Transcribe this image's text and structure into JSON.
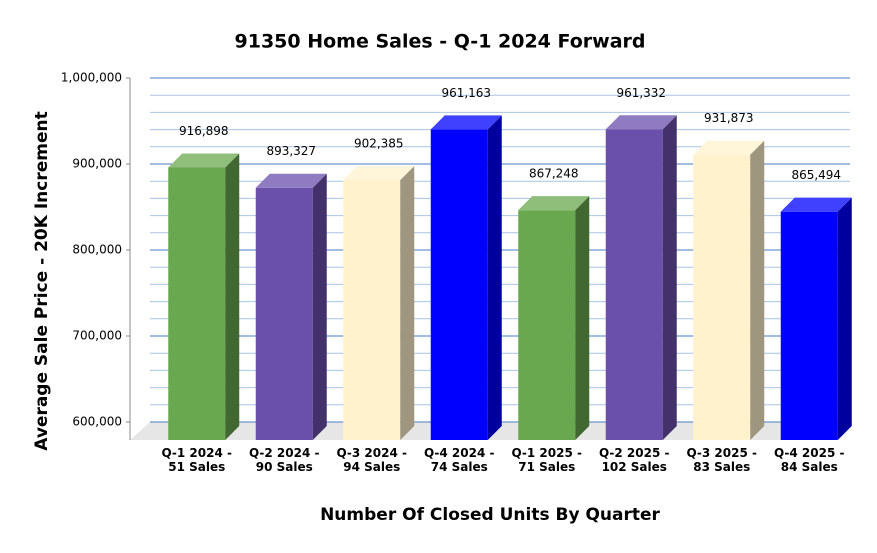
{
  "chart_data": {
    "type": "bar3d",
    "title": "91350 Home Sales - Q-1 2024 Forward",
    "x_label": "Number Of Closed Units By Quarter",
    "y_label": "Average Sale Price - 20K Increment",
    "categories": [
      "Q-1 2024 -\n51 Sales",
      "Q-2 2024 -\n90 Sales",
      "Q-3 2024 -\n94 Sales",
      "Q-4 2024 -\n74 Sales",
      "Q-1 2025 -\n71 Sales",
      "Q-2 2025 -\n102 Sales",
      "Q-3 2025 -\n83 Sales",
      "Q-4 2025 -\n84 Sales"
    ],
    "values": [
      916898,
      893327,
      902385,
      961163,
      867248,
      961332,
      931873,
      865494
    ],
    "value_labels": [
      "916,898",
      "893,327",
      "902,385",
      "961,163",
      "867,248",
      "961,332",
      "931,873",
      "865,494"
    ],
    "colors": [
      "#6aa84f",
      "#6a4fab",
      "#fff2cc",
      "#0000ff",
      "#6aa84f",
      "#6a4fab",
      "#fff2cc",
      "#0000ff"
    ],
    "ylim": [
      600000,
      1000000
    ],
    "yticks": [
      {
        "value": 600000,
        "label": "600,000"
      },
      {
        "value": 700000,
        "label": "700,000"
      },
      {
        "value": 800000,
        "label": "800,000"
      },
      {
        "value": 900000,
        "label": "900,000"
      },
      {
        "value": 1000000,
        "label": "1,000,000"
      }
    ],
    "minor_yticks": [
      620000,
      640000,
      660000,
      680000,
      720000,
      740000,
      760000,
      780000,
      820000,
      840000,
      860000,
      880000,
      920000,
      940000,
      960000,
      980000
    ],
    "grid": true
  }
}
